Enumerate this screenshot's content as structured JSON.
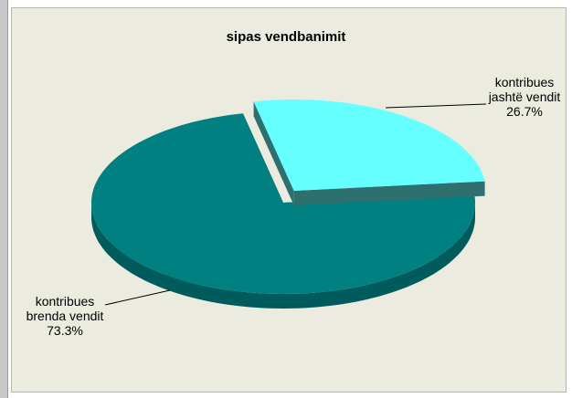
{
  "chart_data": {
    "type": "pie",
    "title": "sipas vendbanimit",
    "categories": [
      "kontribues brenda vendit",
      "kontribues jashtë vendit"
    ],
    "values": [
      73.3,
      26.7
    ],
    "value_labels": [
      "73.3%",
      "26.7%"
    ],
    "colors": [
      "#008080",
      "#66ffff"
    ],
    "explode": [
      false,
      true
    ]
  }
}
